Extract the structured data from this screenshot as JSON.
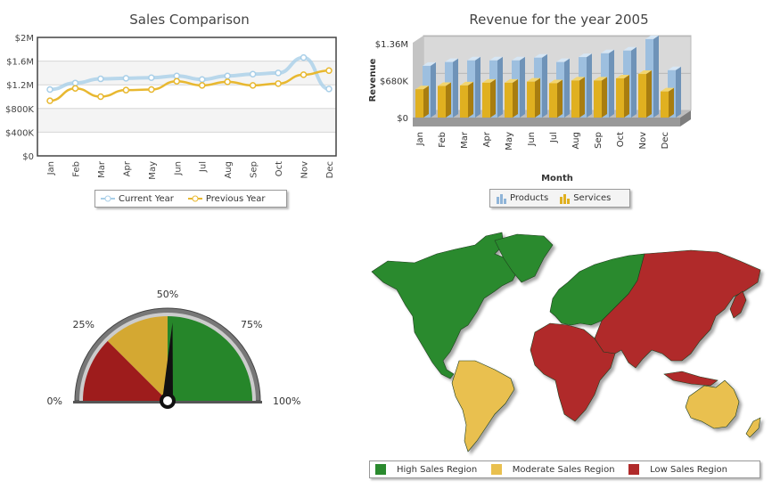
{
  "chart_data": [
    {
      "type": "line",
      "title": "Sales Comparison",
      "categories": [
        "Jan",
        "Feb",
        "Mar",
        "Apr",
        "May",
        "Jun",
        "Jul",
        "Aug",
        "Sep",
        "Oct",
        "Nov",
        "Dec"
      ],
      "yticks": [
        "$0",
        "$400K",
        "$800K",
        "$1.2M",
        "$1.6M",
        "$2M"
      ],
      "ylim": [
        0,
        2000000
      ],
      "series": [
        {
          "name": "Current Year",
          "color": "#a9cfe8",
          "values": [
            1120000,
            1230000,
            1300000,
            1310000,
            1320000,
            1350000,
            1290000,
            1350000,
            1380000,
            1400000,
            1660000,
            1130000
          ]
        },
        {
          "name": "Previous Year",
          "color": "#e8b830",
          "values": [
            930000,
            1140000,
            1000000,
            1110000,
            1120000,
            1260000,
            1190000,
            1250000,
            1190000,
            1220000,
            1370000,
            1440000
          ]
        }
      ],
      "grid": true,
      "legend": "bottom"
    },
    {
      "type": "bar",
      "title": "Revenue for the year 2005",
      "xlabel": "Month",
      "ylabel": "Revenue",
      "categories": [
        "Jan",
        "Feb",
        "Mar",
        "Apr",
        "May",
        "Jun",
        "Jul",
        "Aug",
        "Sep",
        "Oct",
        "Nov",
        "Dec"
      ],
      "yticks": [
        "$0",
        "$680K",
        "$1.36M"
      ],
      "ylim": [
        0,
        1700000
      ],
      "series": [
        {
          "name": "Products",
          "color": "#8fb4d8",
          "values": [
            950000,
            1020000,
            1050000,
            1050000,
            1050000,
            1100000,
            1020000,
            1110000,
            1180000,
            1230000,
            1440000,
            870000
          ]
        },
        {
          "name": "Services",
          "color": "#e0b020",
          "values": [
            520000,
            580000,
            590000,
            640000,
            640000,
            660000,
            630000,
            680000,
            680000,
            720000,
            800000,
            480000
          ]
        }
      ],
      "legend": "bottom"
    },
    {
      "type": "gauge",
      "value": 52,
      "ticks": [
        "0%",
        "25%",
        "50%",
        "75%",
        "100%"
      ],
      "bands": [
        {
          "from": 0,
          "to": 25,
          "color": "#9e1c1c"
        },
        {
          "from": 25,
          "to": 50,
          "color": "#d4a832"
        },
        {
          "from": 50,
          "to": 100,
          "color": "#26862a"
        }
      ]
    },
    {
      "type": "map",
      "legend": [
        {
          "label": "High Sales Region",
          "color": "#2a8a2e"
        },
        {
          "label": "Moderate Sales Region",
          "color": "#e9c04f"
        },
        {
          "label": "Low Sales Region",
          "color": "#b02a2a"
        }
      ],
      "regions": [
        {
          "name": "North America",
          "level": "High Sales Region"
        },
        {
          "name": "Europe",
          "level": "High Sales Region"
        },
        {
          "name": "South America",
          "level": "Moderate Sales Region"
        },
        {
          "name": "Australia",
          "level": "Moderate Sales Region"
        },
        {
          "name": "Africa",
          "level": "Low Sales Region"
        },
        {
          "name": "Asia",
          "level": "Low Sales Region"
        },
        {
          "name": "Middle East",
          "level": "Low Sales Region"
        }
      ]
    }
  ]
}
